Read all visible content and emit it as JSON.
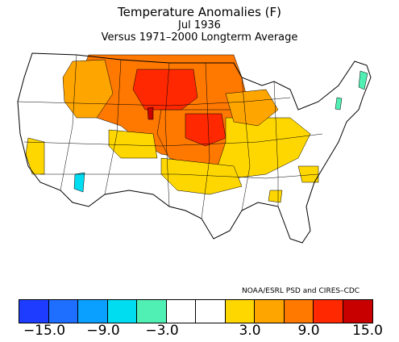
{
  "title": {
    "line1": "Temperature Anomalies (F)",
    "line2": "Jul 1936",
    "line3": "Versus 1971–2000 Longterm Average"
  },
  "credit": "NOAA/ESRL PSD and CIRES–CDC",
  "legend": {
    "colors": [
      "#1e3cff",
      "#1e6eff",
      "#0aa0ff",
      "#00dcf0",
      "#50f0b4",
      "#ffffff",
      "#ffffff",
      "#ffd700",
      "#ffa500",
      "#ff7800",
      "#ff2800",
      "#c80000"
    ],
    "ticks": [
      "−15.0",
      "−9.0",
      "−3.0",
      "3.0",
      "9.0",
      "15.0"
    ]
  },
  "colors": {
    "map_border": "#000000",
    "background": "#ffffff"
  }
}
